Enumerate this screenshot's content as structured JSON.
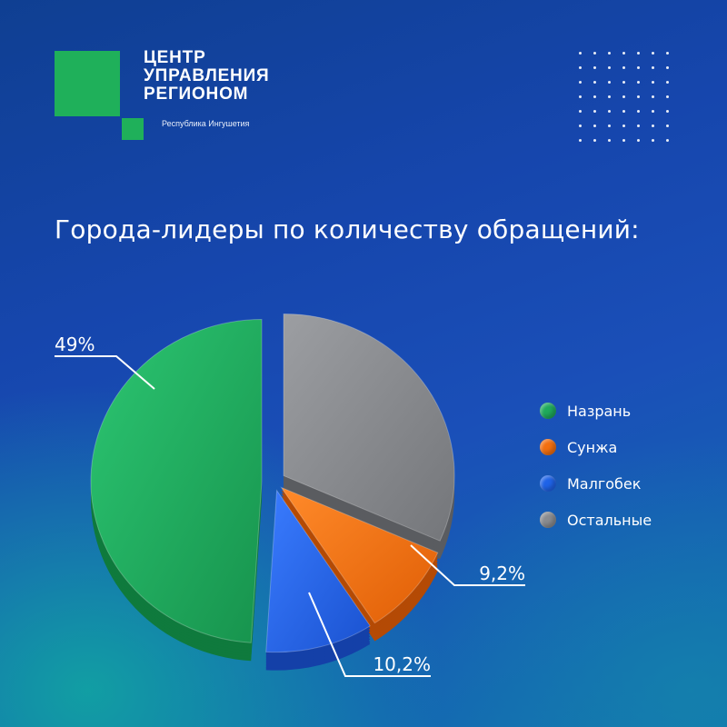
{
  "logo": {
    "line1": "ЦЕНТР",
    "line2": "УПРАВЛЕНИЯ",
    "line3": "РЕГИОНОМ",
    "subtitle": "Республика Ингушетия",
    "color": "#1fb05a"
  },
  "title": "Города-лидеры по количеству обращений:",
  "chart_data": {
    "type": "pie",
    "categories": [
      "Назрань",
      "Сунжа",
      "Малгобек",
      "Остальные"
    ],
    "values": [
      49,
      9.2,
      10.2,
      31.6
    ],
    "value_labels": [
      "49%",
      "9,2%",
      "10,2%",
      ""
    ],
    "colors": [
      "#1faa5c",
      "#f36f10",
      "#1f63e8",
      "#8a8c90"
    ],
    "legend_position": "right"
  }
}
